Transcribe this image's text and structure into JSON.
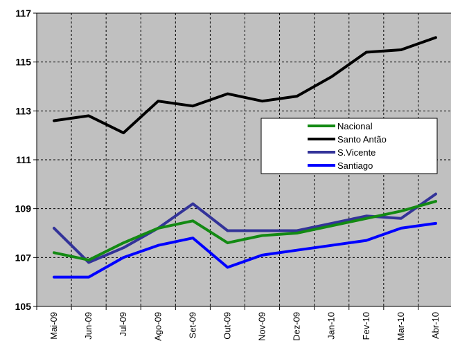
{
  "chart_data": {
    "type": "line",
    "title": "",
    "xlabel": "",
    "ylabel": "",
    "categories": [
      "Mai-09",
      "Jun-09",
      "Jul-09",
      "Ago-09",
      "Set-09",
      "Out-09",
      "Nov-09",
      "Dez-09",
      "Jan-10",
      "Fev-10",
      "Mar-10",
      "Abr-10"
    ],
    "ylim": [
      105,
      117
    ],
    "yticks": [
      "105",
      "107",
      "109",
      "111",
      "113",
      "115",
      "117"
    ],
    "grid": true,
    "legend_position": "right",
    "plot_background": "#c0c0c0",
    "series": [
      {
        "name": "Nacional",
        "color": "#138a13",
        "values": [
          107.2,
          106.9,
          107.6,
          108.2,
          108.5,
          107.6,
          107.9,
          108.0,
          108.3,
          108.6,
          108.9,
          109.3
        ]
      },
      {
        "name": "Santo Antão",
        "color": "#000000",
        "values": [
          112.6,
          112.8,
          112.1,
          113.4,
          113.2,
          113.7,
          113.4,
          113.6,
          114.4,
          115.4,
          115.5,
          116.0
        ]
      },
      {
        "name": "S.Vicente",
        "color": "#333399",
        "values": [
          108.2,
          106.8,
          107.4,
          108.2,
          109.2,
          108.1,
          108.1,
          108.1,
          108.4,
          108.7,
          108.6,
          109.6
        ]
      },
      {
        "name": "Santiago",
        "color": "#0000ff",
        "values": [
          106.2,
          106.2,
          107.0,
          107.5,
          107.8,
          106.6,
          107.1,
          107.3,
          107.5,
          107.7,
          108.2,
          108.4
        ]
      }
    ]
  }
}
